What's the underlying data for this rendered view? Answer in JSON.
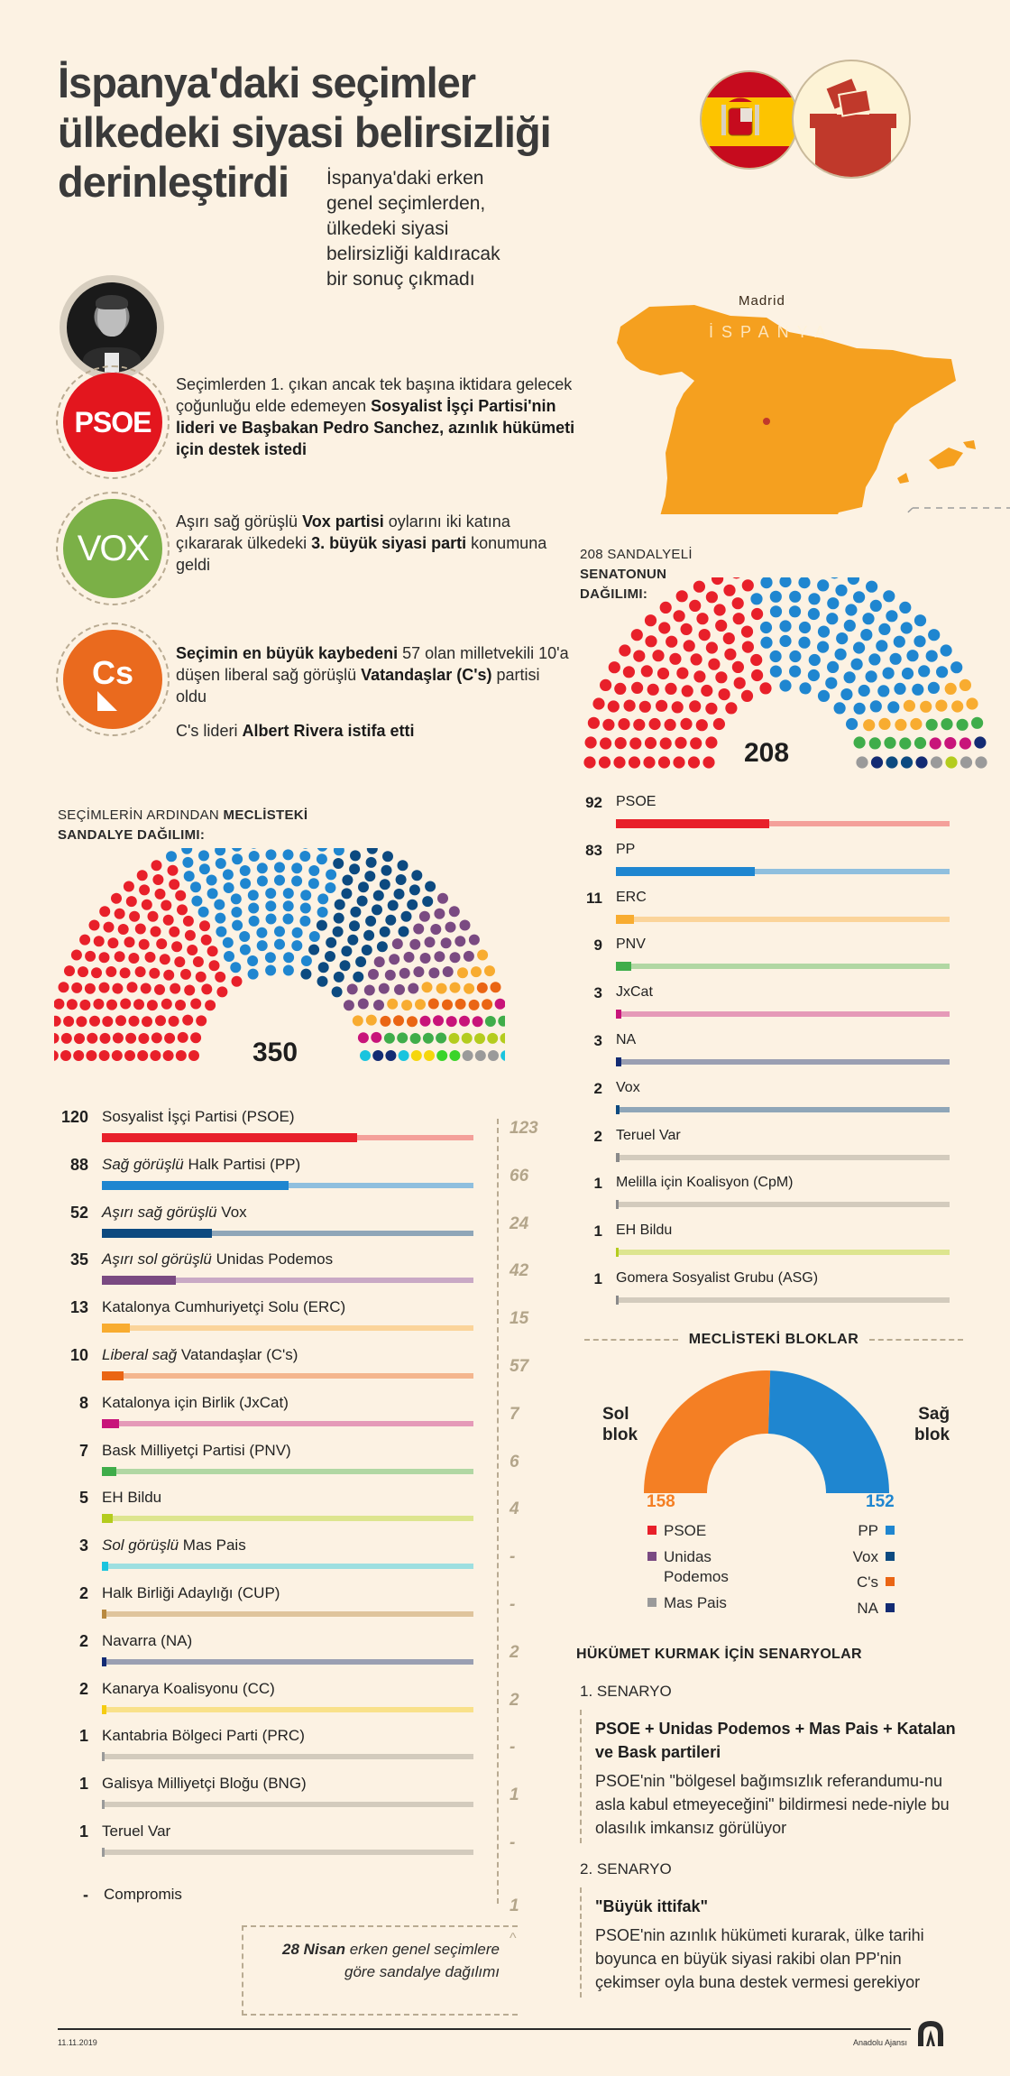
{
  "header": {
    "title_lines": [
      "İspanya'daki seçimler",
      "ülkedeki siyasi belirsizliği",
      "derinleştirdi"
    ],
    "subtitle_lines": [
      "İspanya'daki erken",
      "genel seçimlerden,",
      "ülkedeki siyasi",
      "belirsizliği kaldıracak",
      "bir sonuç çıkmadı"
    ]
  },
  "map": {
    "capital": "Madrid",
    "country": "İSPANYA",
    "icons": [
      "spain-flag-icon",
      "ballot-box-icon"
    ],
    "land_color": "#f5a01f",
    "capital_dot_color": "#c0392b"
  },
  "highlights": {
    "psoe": {
      "logo_text": "PSOE",
      "text_plain_1": "Seçimlerden 1. çıkan ancak tek başına iktidara gelecek çoğunluğu elde edemeyen ",
      "text_bold_1": "Sosyalist İşçi Partisi'nin lideri ve Başbakan Pedro Sanchez, azınlık hükümeti için destek istedi"
    },
    "vox": {
      "logo_text": "VOX",
      "text_plain_1": "Aşırı sağ görüşlü ",
      "text_bold_1": "Vox partisi",
      "text_plain_2": " oylarını iki katına çıkararak ülkedeki ",
      "text_bold_2": "3. büyük siyasi parti",
      "text_plain_3": " konumuna geldi"
    },
    "cs": {
      "logo_text": "Cs",
      "text_bold_1": "Seçimin en büyük kaybedeni",
      "text_plain_1": " 57 olan milletvekili 10'a düşen liberal sağ görüşlü ",
      "text_bold_2": "Vatandaşlar (C's)",
      "text_plain_2": " partisi oldu",
      "line2_plain": "C's lideri ",
      "line2_bold": "Albert Rivera istifa etti"
    }
  },
  "congress": {
    "label_plain": "SEÇİMLERİN ARDINDAN ",
    "label_bold_1": "MECLİSTEKİ",
    "label_bold_2": "SANDALYE DAĞILIMI:",
    "total": "350",
    "previous_note_bold": "28 Nisan",
    "previous_note_rest_1": " erken genel seçimlere",
    "previous_note_rest_2": "göre sandalye dağılımı",
    "parties": [
      {
        "seats": "120",
        "seat_value": 120,
        "prefix": "",
        "name": "Sosyalist İşçi Partisi (PSOE)",
        "previous": "123",
        "color": "#e8202a",
        "track": "#f4a09a"
      },
      {
        "seats": "88",
        "seat_value": 88,
        "prefix": "Sağ görüşlü",
        "name": "Halk Partisi (PP)",
        "previous": "66",
        "color": "#1f86d0",
        "track": "#8fbfde"
      },
      {
        "seats": "52",
        "seat_value": 52,
        "prefix": "Aşırı sağ görüşlü",
        "name": "Vox",
        "previous": "24",
        "color": "#0c4a80",
        "track": "#8fa6b8"
      },
      {
        "seats": "35",
        "seat_value": 35,
        "prefix": "Aşırı sol görüşlü",
        "name": "Unidas Podemos",
        "previous": "42",
        "color": "#7a4a82",
        "track": "#c9a9c5"
      },
      {
        "seats": "13",
        "seat_value": 13,
        "prefix": "",
        "name": "Katalonya Cumhuriyetçi Solu (ERC)",
        "previous": "15",
        "color": "#f8ac30",
        "track": "#fbd49a"
      },
      {
        "seats": "10",
        "seat_value": 10,
        "prefix": "Liberal sağ",
        "name": "Vatandaşlar (C's)",
        "previous": "57",
        "color": "#ea6514",
        "track": "#f4b68e"
      },
      {
        "seats": "8",
        "seat_value": 8,
        "prefix": "",
        "name": "Katalonya için Birlik (JxCat)",
        "previous": "7",
        "color": "#c8147a",
        "track": "#e59ab8"
      },
      {
        "seats": "7",
        "seat_value": 7,
        "prefix": "",
        "name": "Bask Milliyetçi Partisi (PNV)",
        "previous": "6",
        "color": "#3fad4a",
        "track": "#b1d7a3"
      },
      {
        "seats": "5",
        "seat_value": 5,
        "prefix": "",
        "name": "EH Bildu",
        "previous": "4",
        "color": "#b4cc1e",
        "track": "#dde58f"
      },
      {
        "seats": "3",
        "seat_value": 3,
        "prefix": "Sol görüşlü",
        "name": "Mas Pais",
        "previous": "-",
        "color": "#1ac4de",
        "track": "#9ddfe0"
      },
      {
        "seats": "2",
        "seat_value": 2,
        "prefix": "",
        "name": "Halk Birliği Adaylığı (CUP)",
        "previous": "-",
        "color": "#b8893f",
        "track": "#dfc49c"
      },
      {
        "seats": "2",
        "seat_value": 2,
        "prefix": "",
        "name": "Navarra (NA)",
        "previous": "2",
        "color": "#132b73",
        "track": "#9a9fb2"
      },
      {
        "seats": "2",
        "seat_value": 2,
        "prefix": "",
        "name": "Kanarya Koalisyonu (CC)",
        "previous": "2",
        "color": "#f5cc12",
        "track": "#f9e18a"
      },
      {
        "seats": "1",
        "seat_value": 1,
        "prefix": "",
        "name": "Kantabria Bölgeci Parti (PRC)",
        "previous": "-",
        "color": "#9a9a9a",
        "track": "#d3cbbd"
      },
      {
        "seats": "1",
        "seat_value": 1,
        "prefix": "",
        "name": "Galisya Milliyetçi Bloğu (BNG)",
        "previous": "1",
        "color": "#9a9a9a",
        "track": "#d3cbbd"
      },
      {
        "seats": "1",
        "seat_value": 1,
        "prefix": "",
        "name": "Teruel Var",
        "previous": "-",
        "color": "#9a9a9a",
        "track": "#d3cbbd"
      },
      {
        "seats": "-",
        "seat_value": 0,
        "prefix": "",
        "name": "Compromis",
        "previous": "1",
        "color": "",
        "track": ""
      }
    ],
    "hemicycle_order": [
      {
        "color": "#e8202a",
        "n": 120
      },
      {
        "color": "#1f86d0",
        "n": 88
      },
      {
        "color": "#0c4a80",
        "n": 52
      },
      {
        "color": "#7a4a82",
        "n": 35
      },
      {
        "color": "#f8ac30",
        "n": 13
      },
      {
        "color": "#ea6514",
        "n": 10
      },
      {
        "color": "#c8147a",
        "n": 8
      },
      {
        "color": "#3fad4a",
        "n": 7
      },
      {
        "color": "#b4cc1e",
        "n": 5
      },
      {
        "color": "#1ac4de",
        "n": 3
      },
      {
        "color": "#132b73",
        "n": 2
      },
      {
        "color": "#f5d60c",
        "n": 2
      },
      {
        "color": "#3bd42a",
        "n": 2
      },
      {
        "color": "#9a9a9a",
        "n": 3
      }
    ]
  },
  "senate": {
    "label_plain": "208 SANDALYELİ",
    "label_bold_1": "SENATONUN",
    "label_bold_2": "DAĞILIMI:",
    "total": "208",
    "parties": [
      {
        "seats": "92",
        "seat_value": 92,
        "name": "PSOE",
        "color": "#e8202a",
        "track": "#f4a09a"
      },
      {
        "seats": "83",
        "seat_value": 83,
        "name": "PP",
        "color": "#1f86d0",
        "track": "#8fbfde"
      },
      {
        "seats": "11",
        "seat_value": 11,
        "name": "ERC",
        "color": "#f8ac30",
        "track": "#fbd49a"
      },
      {
        "seats": "9",
        "seat_value": 9,
        "name": "PNV",
        "color": "#3fad4a",
        "track": "#b1d7a3"
      },
      {
        "seats": "3",
        "seat_value": 3,
        "name": "JxCat",
        "color": "#c8147a",
        "track": "#e59ab8"
      },
      {
        "seats": "3",
        "seat_value": 3,
        "name": "NA",
        "color": "#132b73",
        "track": "#9a9fb2"
      },
      {
        "seats": "2",
        "seat_value": 2,
        "name": "Vox",
        "color": "#0c4a80",
        "track": "#8fa6b8"
      },
      {
        "seats": "2",
        "seat_value": 2,
        "name": "Teruel Var",
        "color": "#8a8a8a",
        "track": "#d3cbbd"
      },
      {
        "seats": "1",
        "seat_value": 1,
        "name": "Melilla için Koalisyon (CpM)",
        "color": "#8a8a8a",
        "track": "#d3cbbd"
      },
      {
        "seats": "1",
        "seat_value": 1,
        "name": "EH Bildu",
        "color": "#b4cc1e",
        "track": "#dde58f"
      },
      {
        "seats": "1",
        "seat_value": 1,
        "name": "Gomera Sosyalist Grubu (ASG)",
        "color": "#8a8a8a",
        "track": "#d3cbbd"
      }
    ],
    "hemicycle_order": [
      {
        "color": "#e8202a",
        "n": 92
      },
      {
        "color": "#1f86d0",
        "n": 83
      },
      {
        "color": "#f8ac30",
        "n": 11
      },
      {
        "color": "#3fad4a",
        "n": 9
      },
      {
        "color": "#c8147a",
        "n": 3
      },
      {
        "color": "#132b73",
        "n": 3
      },
      {
        "color": "#9a9a9a",
        "n": 2
      },
      {
        "color": "#0c4a80",
        "n": 2
      },
      {
        "color": "#9a9a9a",
        "n": 1
      },
      {
        "color": "#b4cc1e",
        "n": 1
      },
      {
        "color": "#9a9a9a",
        "n": 1
      }
    ]
  },
  "blocs": {
    "title": "MECLİSTEKİ BLOKLAR",
    "left": {
      "label_1": "Sol",
      "label_2": "blok",
      "total": "158",
      "value": 158,
      "color": "#f47f24",
      "members": [
        {
          "name": "PSOE",
          "color": "#e8202a"
        },
        {
          "name": "Unidas Podemos",
          "color": "#7a4a82"
        },
        {
          "name": "Mas Pais",
          "color": "#9a9a9a"
        }
      ]
    },
    "right": {
      "label_1": "Sağ",
      "label_2": "blok",
      "total": "152",
      "value": 152,
      "color": "#1f86d0",
      "members": [
        {
          "name": "PP",
          "color": "#1f86d0"
        },
        {
          "name": "Vox",
          "color": "#0c4a80"
        },
        {
          "name": "C's",
          "color": "#ea6514"
        },
        {
          "name": "NA",
          "color": "#132b73"
        }
      ]
    }
  },
  "scenarios": {
    "title": "HÜKÜMET KURMAK İÇİN SENARYOLAR",
    "items": [
      {
        "label": "1. SENARYO",
        "head": "PSOE + Unidas Podemos + Mas Pais + Katalan ve Bask partileri",
        "body": "PSOE'nin \"bölgesel bağımsızlık referandumu-nu asla kabul etmeyeceğini\" bildirmesi nede-niyle bu olasılık imkansız görülüyor"
      },
      {
        "label": "2. SENARYO",
        "head": "\"Büyük ittifak\"",
        "body": "PSOE'nin azınlık hükümeti kurarak, ülke tarihi boyunca en büyük siyasi rakibi olan PP'nin çekimser oyla buna destek vermesi gerekiyor"
      }
    ]
  },
  "footer": {
    "date": "11.11.2019",
    "agency": "Anadolu Ajansı",
    "logo": "AA"
  }
}
